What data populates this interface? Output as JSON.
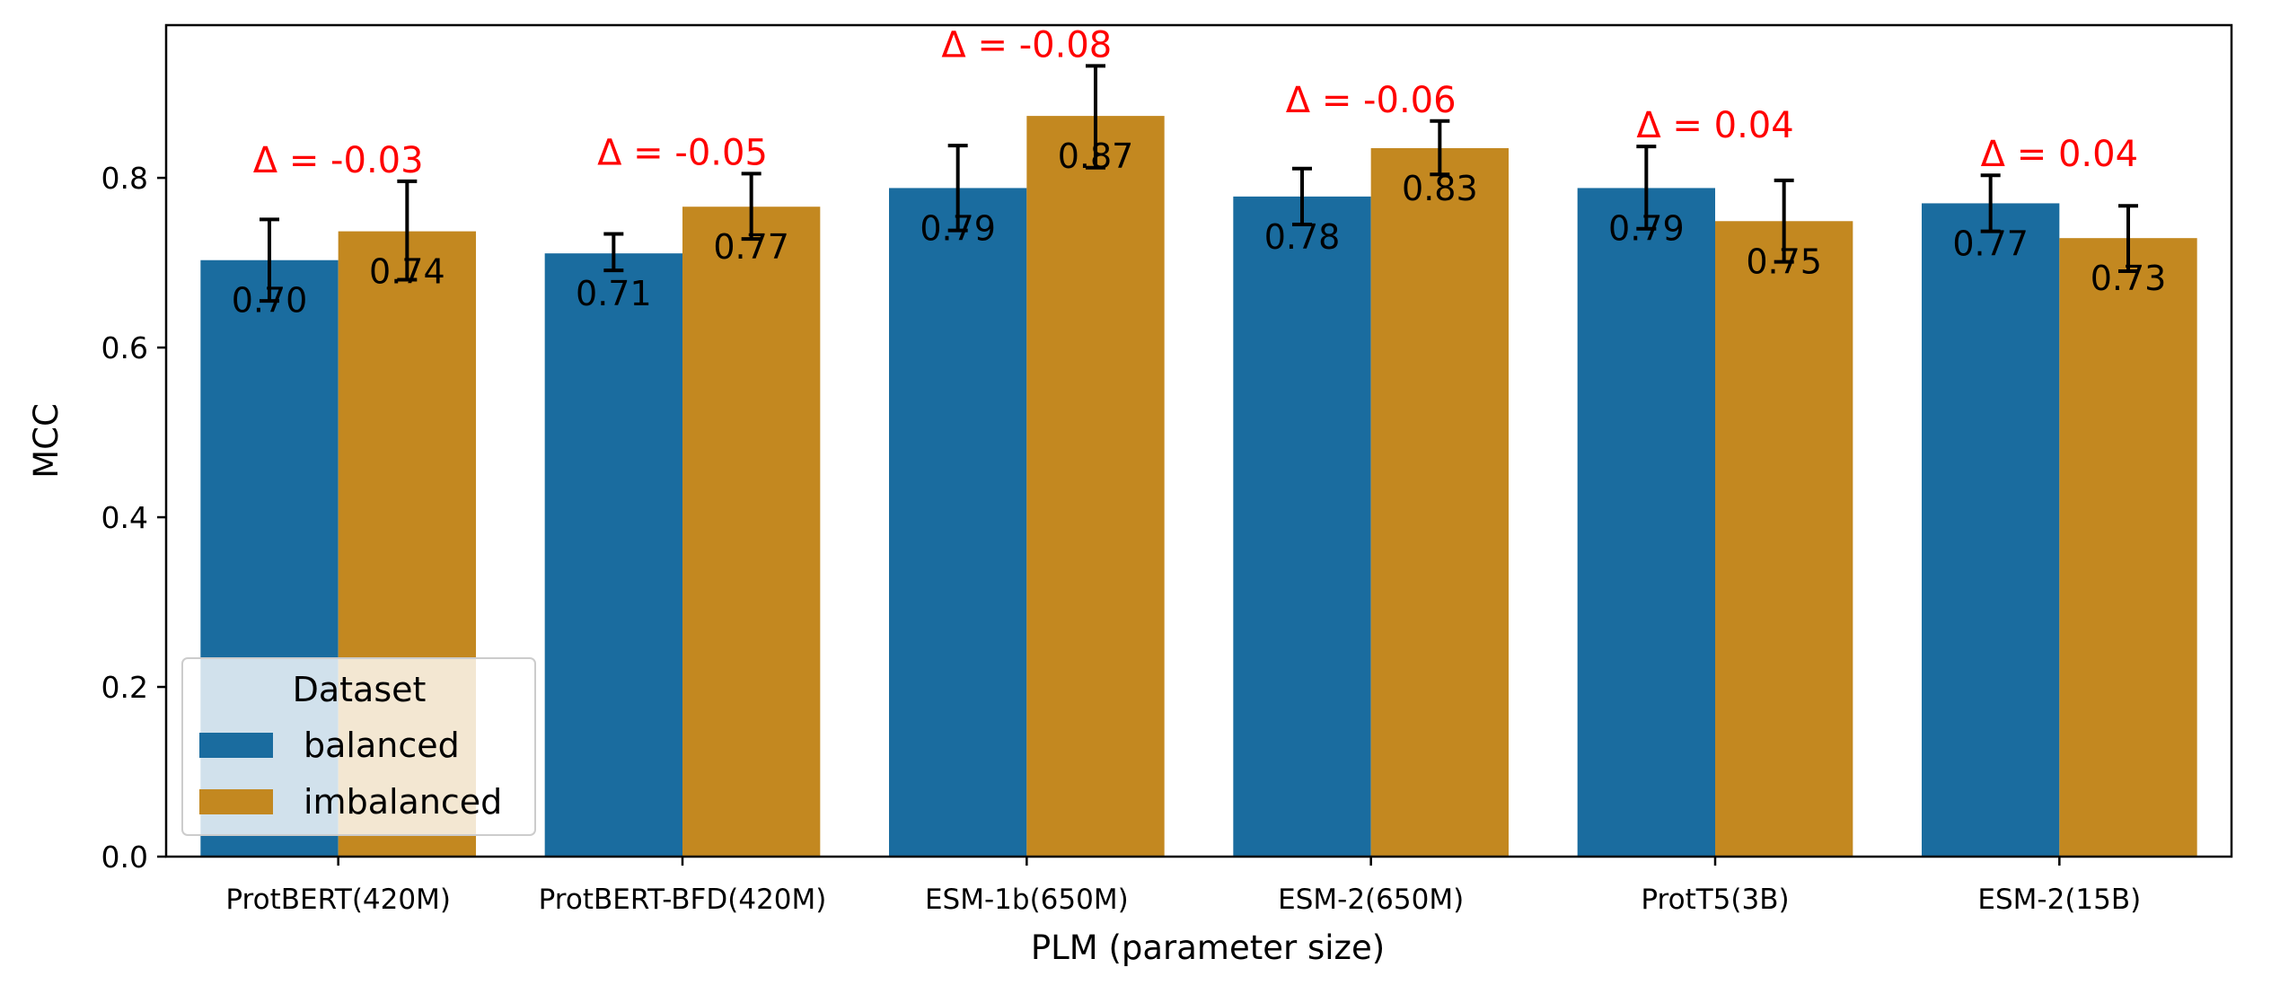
{
  "chart_data": {
    "type": "bar",
    "xlabel": "PLM (parameter size)",
    "ylabel": "MCC",
    "ylim": [
      0,
      0.98
    ],
    "yticks": [
      "0.0",
      "0.2",
      "0.4",
      "0.6",
      "0.8"
    ],
    "categories": [
      "ProtBERT(420M)",
      "ProtBERT-BFD(420M)",
      "ESM-1b(650M)",
      "ESM-2(650M)",
      "ProtT5(3B)",
      "ESM-2(15B)"
    ],
    "series": [
      {
        "name": "balanced",
        "color": "#1a6c9f",
        "values": [
          0.703,
          0.711,
          0.788,
          0.778,
          0.788,
          0.77
        ],
        "labels": [
          "0.70",
          "0.71",
          "0.79",
          "0.78",
          "0.79",
          "0.77"
        ],
        "err_low": [
          0.655,
          0.691,
          0.738,
          0.745,
          0.74,
          0.737
        ],
        "err_high": [
          0.751,
          0.734,
          0.838,
          0.811,
          0.837,
          0.803
        ]
      },
      {
        "name": "imbalanced",
        "color": "#c38820",
        "values": [
          0.737,
          0.766,
          0.873,
          0.835,
          0.749,
          0.729
        ],
        "labels": [
          "0.74",
          "0.77",
          "0.87",
          "0.83",
          "0.75",
          "0.73"
        ],
        "err_low": [
          0.68,
          0.728,
          0.812,
          0.804,
          0.701,
          0.69
        ],
        "err_high": [
          0.796,
          0.805,
          0.932,
          0.867,
          0.797,
          0.767
        ]
      }
    ],
    "annotations": [
      "Δ = -0.03",
      "Δ = -0.05",
      "Δ = -0.08",
      "Δ = -0.06",
      "Δ = 0.04",
      "Δ = 0.04"
    ],
    "annotation_color": "#ff0000",
    "legend": {
      "title": "Dataset",
      "placement": "lower-left"
    },
    "grid": false
  }
}
